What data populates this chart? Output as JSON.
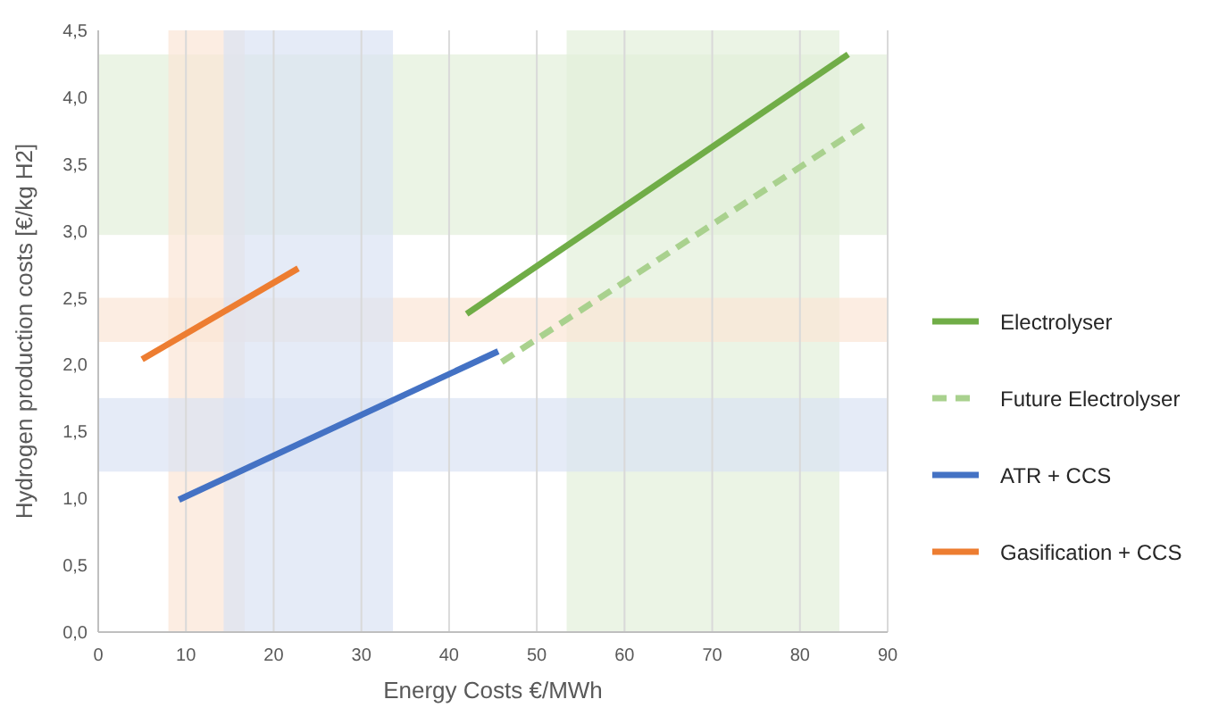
{
  "chart_data": {
    "type": "line",
    "xlabel": "Energy Costs €/MWh",
    "ylabel": "Hydrogen production costs [€/kg H2]",
    "xlim": [
      0,
      90
    ],
    "xticks": [
      0,
      10,
      20,
      30,
      40,
      50,
      60,
      70,
      80,
      90
    ],
    "ylim": [
      0,
      4.5
    ],
    "yticks": [
      {
        "value": 0,
        "label": "0,0"
      },
      {
        "value": 0.5,
        "label": "0,5"
      },
      {
        "value": 1,
        "label": "1,0"
      },
      {
        "value": 1.5,
        "label": "1,5"
      },
      {
        "value": 2,
        "label": "2,0"
      },
      {
        "value": 2.5,
        "label": "2,5"
      },
      {
        "value": 3,
        "label": "3,0"
      },
      {
        "value": 3.5,
        "label": "3,5"
      },
      {
        "value": 4,
        "label": "4,0"
      },
      {
        "value": 4.5,
        "label": "4,5"
      }
    ],
    "grid": "x",
    "legend": "right",
    "series": [
      {
        "name": "Electrolyser",
        "color": "#70ad47",
        "x": [
          42,
          85.5
        ],
        "values": [
          2.38,
          4.32
        ]
      },
      {
        "name": "Future Electrolyser",
        "color": "#a9d18e",
        "line_style": "dashed",
        "x": [
          46,
          88
        ],
        "values": [
          2.02,
          3.82
        ]
      },
      {
        "name": "ATR + CCS",
        "color": "#4472c4",
        "x": [
          9.2,
          45.6
        ],
        "values": [
          0.99,
          2.1
        ]
      },
      {
        "name": "Gasification + CCS",
        "color": "#ed7d31",
        "x": [
          5,
          22.8
        ],
        "values": [
          2.04,
          2.72
        ]
      }
    ],
    "bands": [
      {
        "axis": "y",
        "from": 2.97,
        "to": 4.32,
        "color": "#e2efda"
      },
      {
        "axis": "x",
        "from": 53.4,
        "to": 84.5,
        "color": "#e2efda"
      },
      {
        "axis": "y",
        "from": 2.17,
        "to": 2.5,
        "color": "#fbe5d6"
      },
      {
        "axis": "x",
        "from": 8,
        "to": 16.7,
        "color": "#fbe5d6"
      },
      {
        "axis": "y",
        "from": 1.2,
        "to": 1.75,
        "color": "#dae3f3"
      },
      {
        "axis": "x",
        "from": 14.3,
        "to": 33.6,
        "color": "#dae3f3"
      }
    ]
  }
}
